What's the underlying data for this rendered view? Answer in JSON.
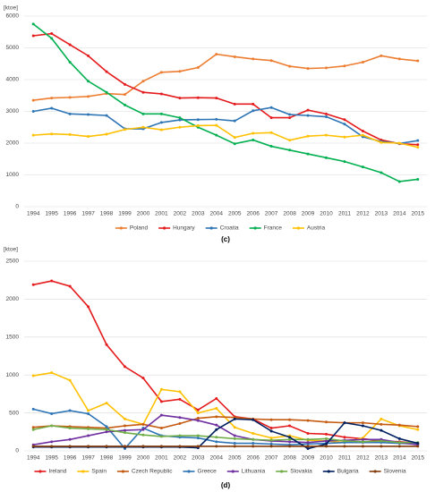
{
  "chart_data": [
    {
      "type": "line",
      "ylabel": "[ktoe]",
      "label": "(c)",
      "categories": [
        "1994",
        "1995",
        "1996",
        "1997",
        "1998",
        "1999",
        "2000",
        "2001",
        "2002",
        "2003",
        "2004",
        "2005",
        "2006",
        "2007",
        "2008",
        "2009",
        "2010",
        "2011",
        "2012",
        "2013",
        "2014",
        "2015"
      ],
      "ylim": [
        0,
        6000
      ],
      "yticks": [
        0,
        1000,
        2000,
        3000,
        4000,
        5000,
        6000
      ],
      "grid": true,
      "series": [
        {
          "name": "Poland",
          "color": "#ed7d31",
          "values": [
            3350,
            3420,
            3440,
            3470,
            3560,
            3530,
            3950,
            4230,
            4260,
            4380,
            4800,
            4720,
            4650,
            4600,
            4420,
            4350,
            4370,
            4430,
            4550,
            4750,
            4650,
            4590
          ]
        },
        {
          "name": "Hungary",
          "color": "#e41a1c",
          "values": [
            5380,
            5450,
            5100,
            4750,
            4250,
            3850,
            3600,
            3550,
            3420,
            3430,
            3420,
            3230,
            3230,
            2800,
            2800,
            3040,
            2920,
            2740,
            2380,
            2100,
            1980,
            1950
          ]
        },
        {
          "name": "Croatia",
          "color": "#2e75b6",
          "values": [
            3000,
            3100,
            2920,
            2900,
            2870,
            2450,
            2450,
            2650,
            2730,
            2740,
            2750,
            2700,
            3020,
            3120,
            2900,
            2870,
            2830,
            2600,
            2200,
            2050,
            1990,
            2080
          ]
        },
        {
          "name": "France",
          "color": "#00b050",
          "values": [
            5750,
            5300,
            4550,
            3950,
            3600,
            3200,
            2920,
            2920,
            2800,
            2500,
            2250,
            1980,
            2100,
            1900,
            1780,
            1660,
            1540,
            1420,
            1250,
            1070,
            790,
            860
          ]
        },
        {
          "name": "Austria",
          "color": "#ffc000",
          "values": [
            2250,
            2290,
            2270,
            2210,
            2280,
            2430,
            2500,
            2420,
            2500,
            2550,
            2560,
            2180,
            2310,
            2330,
            2090,
            2220,
            2250,
            2190,
            2250,
            2020,
            2000,
            1870
          ]
        }
      ]
    },
    {
      "type": "line",
      "ylabel": "[ktoe]",
      "label": "(d)",
      "categories": [
        "1994",
        "1995",
        "1996",
        "1997",
        "1998",
        "1999",
        "2000",
        "2001",
        "2002",
        "2003",
        "2004",
        "2005",
        "2006",
        "2007",
        "2008",
        "2009",
        "2010",
        "2011",
        "2012",
        "2013",
        "2014",
        "2015"
      ],
      "ylim": [
        0,
        2500
      ],
      "yticks": [
        0,
        500,
        1000,
        1500,
        2000,
        2500
      ],
      "grid": true,
      "series": [
        {
          "name": "Ireland",
          "color": "#e41a1c",
          "values": [
            2190,
            2240,
            2170,
            1900,
            1400,
            1110,
            960,
            650,
            680,
            540,
            690,
            450,
            420,
            300,
            330,
            230,
            220,
            180,
            160,
            130,
            120,
            100
          ]
        },
        {
          "name": "Spain",
          "color": "#ffc000",
          "values": [
            990,
            1030,
            930,
            530,
            630,
            420,
            350,
            810,
            780,
            500,
            560,
            310,
            230,
            170,
            200,
            140,
            130,
            110,
            170,
            420,
            330,
            280
          ]
        },
        {
          "name": "Czech Republic",
          "color": "#c55a11",
          "values": [
            310,
            330,
            320,
            310,
            300,
            330,
            350,
            300,
            360,
            430,
            450,
            440,
            420,
            410,
            410,
            400,
            380,
            370,
            370,
            350,
            340,
            320
          ]
        },
        {
          "name": "Greece",
          "color": "#2e75b6",
          "values": [
            550,
            490,
            530,
            490,
            320,
            30,
            300,
            200,
            180,
            170,
            120,
            100,
            100,
            90,
            80,
            90,
            100,
            110,
            110,
            110,
            100,
            90
          ]
        },
        {
          "name": "Lithuania",
          "color": "#7030a0",
          "values": [
            80,
            120,
            150,
            200,
            250,
            270,
            280,
            470,
            440,
            400,
            340,
            200,
            150,
            130,
            120,
            110,
            130,
            140,
            150,
            150,
            110,
            80
          ]
        },
        {
          "name": "Slovakia",
          "color": "#70ad47",
          "values": [
            280,
            330,
            300,
            290,
            280,
            240,
            210,
            190,
            200,
            200,
            180,
            160,
            150,
            140,
            150,
            150,
            160,
            130,
            120,
            130,
            110,
            110
          ]
        },
        {
          "name": "Bulgaria",
          "color": "#002060",
          "values": [
            50,
            50,
            50,
            50,
            50,
            50,
            50,
            50,
            50,
            40,
            280,
            420,
            410,
            260,
            180,
            30,
            90,
            370,
            330,
            270,
            160,
            100
          ]
        },
        {
          "name": "Slovenia",
          "color": "#843c0c",
          "values": [
            60,
            60,
            60,
            60,
            60,
            60,
            60,
            60,
            60,
            60,
            60,
            60,
            60,
            60,
            60,
            60,
            60,
            60,
            60,
            60,
            60,
            60
          ]
        }
      ]
    }
  ]
}
